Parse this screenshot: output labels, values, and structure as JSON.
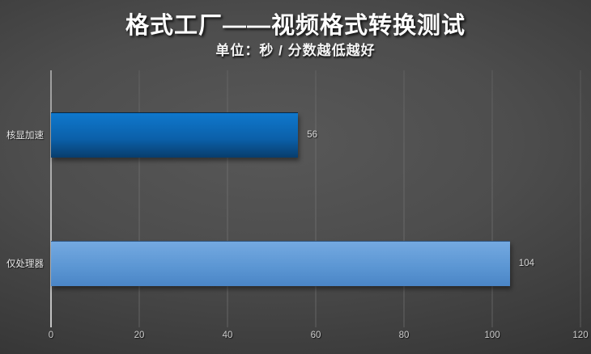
{
  "chart_data": {
    "type": "bar",
    "orientation": "horizontal",
    "title": "格式工厂——视频格式转换测试",
    "subtitle": "单位：秒 / 分数越低越好",
    "categories": [
      "核显加速",
      "仅处理器"
    ],
    "values": [
      56,
      104
    ],
    "value_labels": [
      "56",
      "104"
    ],
    "xlim": [
      0,
      120
    ],
    "x_ticks": [
      0,
      20,
      40,
      60,
      80,
      100,
      120
    ],
    "x_tick_labels": [
      "0",
      "20",
      "40",
      "60",
      "80",
      "100",
      "120"
    ],
    "grid": true,
    "legend": false,
    "xlabel": "",
    "ylabel": "",
    "bar_styles": [
      {
        "top": "#0f78cd",
        "mid": "#0b60a9",
        "bottom": "#083d6c"
      },
      {
        "top": "#74a9e1",
        "mid": "#5b96d3",
        "bottom": "#4a85c6"
      }
    ],
    "colors": {
      "background_center": "#585858",
      "background_edge": "#262626",
      "gridline": "rgba(255,255,255,0.14)",
      "axis_line": "#b0b0b0",
      "title_text": "#ffffff",
      "label_text": "#d8d8d8"
    }
  }
}
